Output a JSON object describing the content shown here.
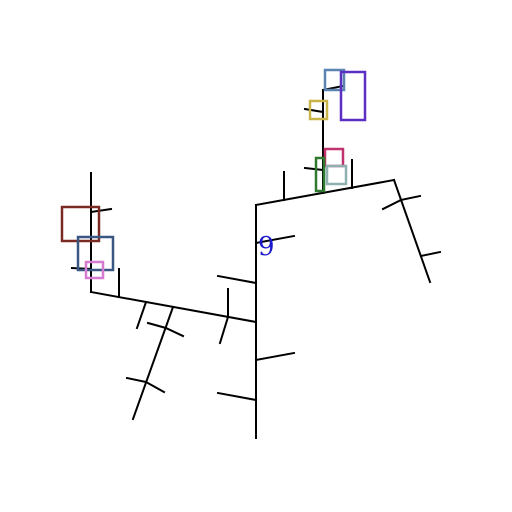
{
  "structure": {
    "atom_label": "9",
    "colors": {
      "bond": "#000000",
      "atom_label": "#1a1acc",
      "box_steelblue": "#5b84b1",
      "box_violet": "#5b2fc2",
      "box_gold": "#c9b44a",
      "box_magenta": "#c0336f",
      "box_green": "#2f7a2f",
      "box_grey": "#8fb0b0",
      "box_brown": "#7a2a22",
      "box_navy": "#3a5683",
      "box_pink": "#d77bd0"
    },
    "highlight_boxes": [
      {
        "id": "steelblue",
        "color_key": "box_steelblue"
      },
      {
        "id": "violet",
        "color_key": "box_violet"
      },
      {
        "id": "gold",
        "color_key": "box_gold"
      },
      {
        "id": "magenta",
        "color_key": "box_magenta"
      },
      {
        "id": "green",
        "color_key": "box_green"
      },
      {
        "id": "grey",
        "color_key": "box_grey"
      },
      {
        "id": "brown",
        "color_key": "box_brown"
      },
      {
        "id": "navy",
        "color_key": "box_navy"
      },
      {
        "id": "pink",
        "color_key": "box_pink"
      }
    ]
  }
}
